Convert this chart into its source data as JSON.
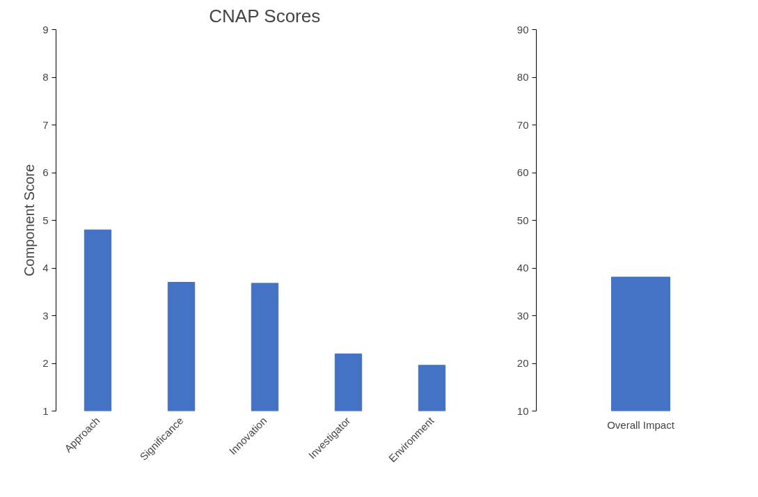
{
  "chart_data": [
    {
      "type": "bar",
      "title": "CNAP Scores",
      "ylabel": "Component Score",
      "categories": [
        "Approach",
        "Significance",
        "Innovation",
        "Investigator",
        "Environment"
      ],
      "values": [
        4.8,
        3.7,
        3.68,
        2.2,
        1.96
      ],
      "color": "#4472c4",
      "ylim": [
        1,
        9
      ],
      "yticks": [
        1,
        2,
        3,
        4,
        5,
        6,
        7,
        8,
        9
      ],
      "grid": false
    },
    {
      "type": "bar",
      "categories": [
        "Overall Impact"
      ],
      "values": [
        38.1
      ],
      "color": "#4472c4",
      "ylim": [
        10,
        90
      ],
      "yticks": [
        10,
        20,
        30,
        40,
        50,
        60,
        70,
        80,
        90
      ],
      "grid": false
    }
  ]
}
